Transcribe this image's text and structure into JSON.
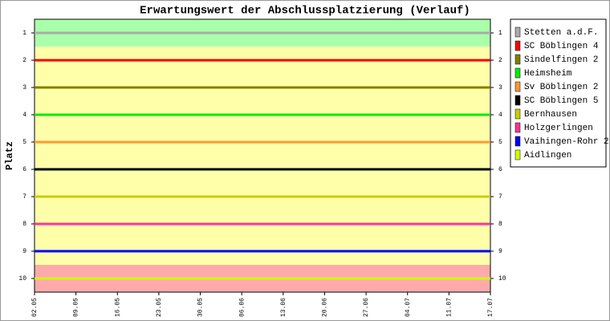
{
  "chart_data": {
    "type": "line",
    "title": "Erwartungswert der Abschlussplatzierung (Verlauf)",
    "y_label": "Platz",
    "categories": [
      "02.05",
      "09.05",
      "16.05",
      "23.05",
      "30.05",
      "06.06",
      "13.06",
      "20.06",
      "27.06",
      "04.07",
      "11.07",
      "17.07"
    ],
    "series": [
      {
        "name": "Stetten a.d.F.",
        "color": "#aaaaaa",
        "values": [
          1,
          1,
          1,
          1,
          1,
          1,
          1,
          1,
          1,
          1,
          1,
          1
        ]
      },
      {
        "name": "SC Böblingen 4",
        "color": "#ff0000",
        "values": [
          2,
          2,
          2,
          2,
          2,
          2,
          2,
          2,
          2,
          2,
          2,
          2
        ]
      },
      {
        "name": "Sindelfingen 2",
        "color": "#808000",
        "values": [
          3,
          3,
          3,
          3,
          3,
          3,
          3,
          3,
          3,
          3,
          3,
          3
        ]
      },
      {
        "name": "Heimsheim",
        "color": "#00ee00",
        "values": [
          4,
          4,
          4,
          4,
          4,
          4,
          4,
          4,
          4,
          4,
          4,
          4
        ]
      },
      {
        "name": "Sv Böblingen 2",
        "color": "#ff9933",
        "values": [
          5,
          5,
          5,
          5,
          5,
          5,
          5,
          5,
          5,
          5,
          5,
          5
        ]
      },
      {
        "name": "SC Böblingen 5",
        "color": "#000000",
        "values": [
          6,
          6,
          6,
          6,
          6,
          6,
          6,
          6,
          6,
          6,
          6,
          6
        ]
      },
      {
        "name": "Bernhausen",
        "color": "#cccc00",
        "values": [
          7,
          7,
          7,
          7,
          7,
          7,
          7,
          7,
          7,
          7,
          7,
          7
        ]
      },
      {
        "name": "Holzgerlingen",
        "color": "#ff3399",
        "values": [
          8,
          8,
          8,
          8,
          8,
          8,
          8,
          8,
          8,
          8,
          8,
          8
        ]
      },
      {
        "name": "Vaihingen-Rohr 2",
        "color": "#0000ff",
        "values": [
          9,
          9,
          9,
          9,
          9,
          9,
          9,
          9,
          9,
          9,
          9,
          9
        ]
      },
      {
        "name": "Aidlingen",
        "color": "#ccff00",
        "values": [
          10,
          10,
          10,
          10,
          10,
          10,
          10,
          10,
          10,
          10,
          10,
          10
        ]
      }
    ],
    "ylim": [
      0.5,
      10.5
    ],
    "y_inverted": true,
    "yticks": [
      1,
      2,
      3,
      4,
      5,
      6,
      7,
      8,
      9,
      10
    ],
    "bands": [
      {
        "from": 0.5,
        "to": 1.5,
        "color": "#aaffaa"
      },
      {
        "from": 1.5,
        "to": 9.5,
        "color": "#ffffaa"
      },
      {
        "from": 9.5,
        "to": 10.5,
        "color": "#ffaaaa"
      }
    ]
  }
}
